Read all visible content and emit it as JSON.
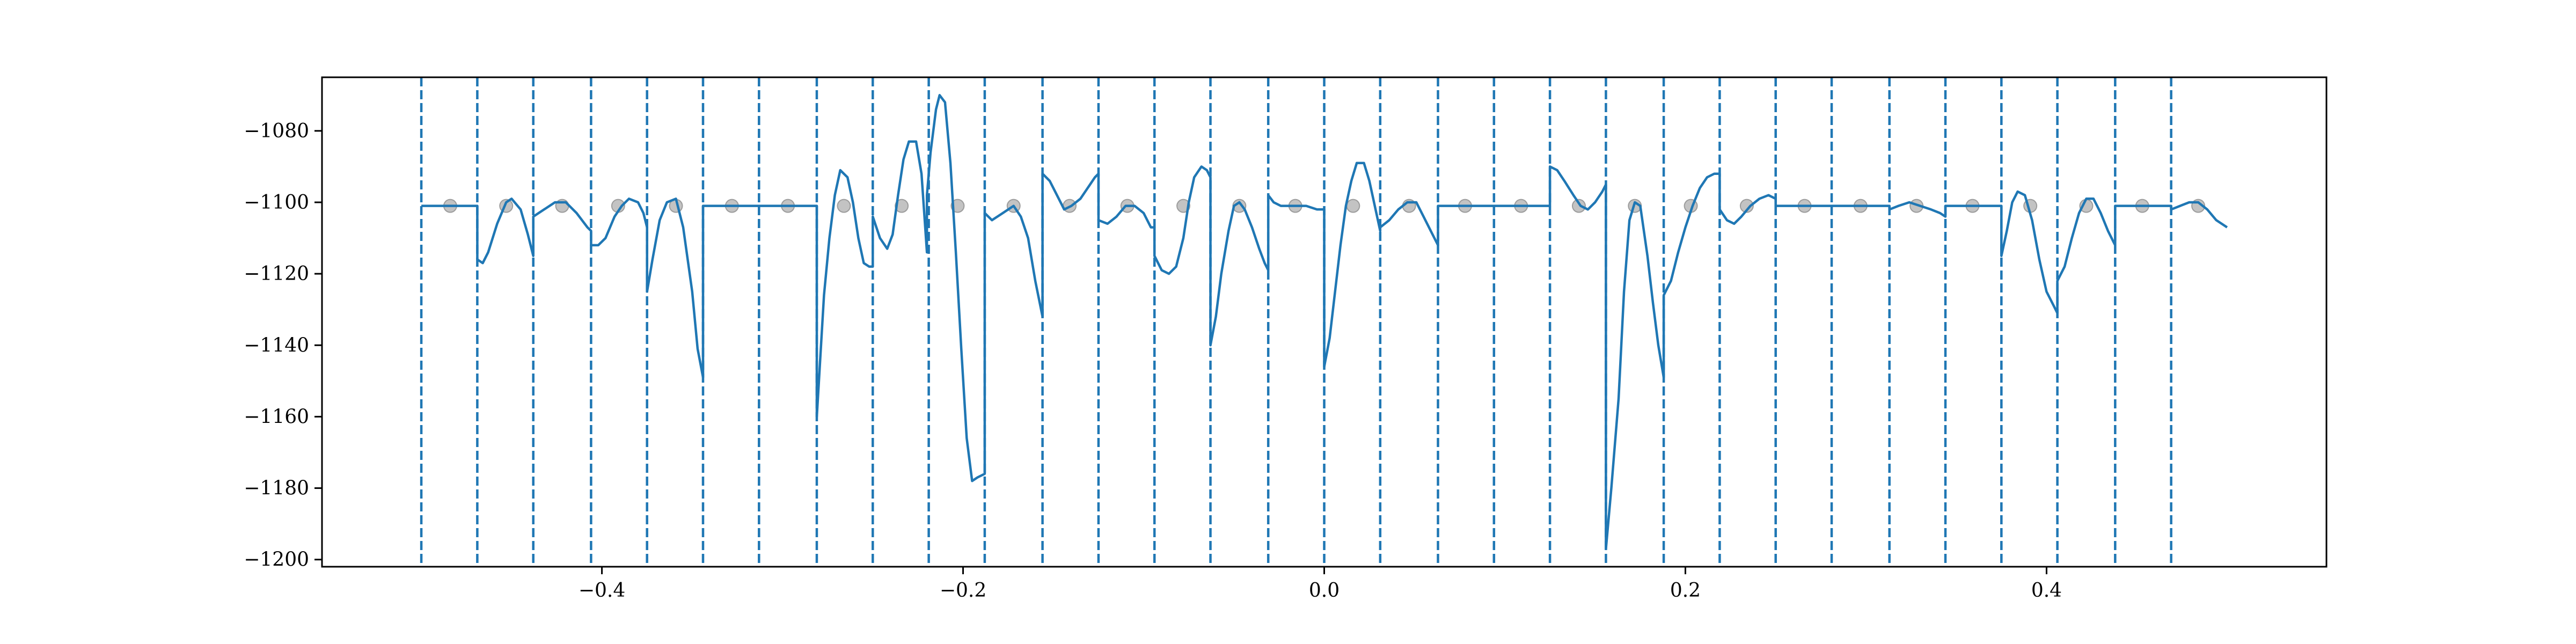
{
  "chart_data": {
    "type": "line",
    "title": "",
    "xlabel": "",
    "ylabel": "",
    "xlim": [
      -0.5,
      0.5
    ],
    "ylim": [
      -1202,
      -1065
    ],
    "x_ticks": [
      -0.4,
      -0.2,
      0.0,
      0.2,
      0.4
    ],
    "x_tick_labels": [
      "−0.4",
      "−0.2",
      "0.0",
      "0.2",
      "0.4"
    ],
    "y_ticks": [
      -1080,
      -1100,
      -1120,
      -1140,
      -1160,
      -1180,
      -1200
    ],
    "y_tick_labels": [
      "−1080",
      "−1100",
      "−1120",
      "−1140",
      "−1160",
      "−1180",
      "−1200"
    ],
    "grid": false,
    "colors": {
      "line": "#1f77b4",
      "markers": "#a9a9a9",
      "dividers": "#1f77b4"
    },
    "divider_x": [
      -0.5,
      -0.469,
      -0.438,
      -0.406,
      -0.375,
      -0.344,
      -0.313,
      -0.281,
      -0.25,
      -0.219,
      -0.188,
      -0.156,
      -0.125,
      -0.094,
      -0.063,
      -0.031,
      0.0,
      0.031,
      0.063,
      0.094,
      0.125,
      0.156,
      0.188,
      0.219,
      0.25,
      0.281,
      0.313,
      0.344,
      0.375,
      0.406,
      0.438,
      0.469
    ],
    "marker_y": -1101,
    "marker_x": [
      -0.484,
      -0.453,
      -0.422,
      -0.391,
      -0.359,
      -0.328,
      -0.297,
      -0.266,
      -0.234,
      -0.203,
      -0.172,
      -0.141,
      -0.109,
      -0.078,
      -0.047,
      -0.016,
      0.016,
      0.047,
      0.078,
      0.109,
      0.141,
      0.172,
      0.203,
      0.234,
      0.266,
      0.297,
      0.328,
      0.359,
      0.391,
      0.422,
      0.453,
      0.484
    ],
    "series": [
      {
        "points": [
          [
            -0.5,
            -1101
          ],
          [
            -0.469,
            -1101
          ],
          [
            -0.469,
            -1116
          ],
          [
            -0.466,
            -1117
          ],
          [
            -0.463,
            -1114
          ],
          [
            -0.458,
            -1106
          ],
          [
            -0.453,
            -1100
          ],
          [
            -0.45,
            -1099
          ],
          [
            -0.445,
            -1102
          ],
          [
            -0.441,
            -1109
          ],
          [
            -0.438,
            -1115
          ],
          [
            -0.438,
            -1104
          ],
          [
            -0.432,
            -1102
          ],
          [
            -0.426,
            -1100
          ],
          [
            -0.42,
            -1100
          ],
          [
            -0.414,
            -1103
          ],
          [
            -0.408,
            -1107
          ],
          [
            -0.406,
            -1108
          ],
          [
            -0.406,
            -1112
          ],
          [
            -0.402,
            -1112
          ],
          [
            -0.398,
            -1110
          ],
          [
            -0.393,
            -1104
          ],
          [
            -0.389,
            -1101
          ],
          [
            -0.385,
            -1099
          ],
          [
            -0.38,
            -1100
          ],
          [
            -0.377,
            -1103
          ],
          [
            -0.375,
            -1107
          ],
          [
            -0.375,
            -1125
          ],
          [
            -0.372,
            -1116
          ],
          [
            -0.368,
            -1105
          ],
          [
            -0.364,
            -1100
          ],
          [
            -0.359,
            -1099
          ],
          [
            -0.355,
            -1107
          ],
          [
            -0.35,
            -1125
          ],
          [
            -0.347,
            -1141
          ],
          [
            -0.344,
            -1149
          ],
          [
            -0.344,
            -1101
          ],
          [
            -0.281,
            -1101
          ],
          [
            -0.281,
            -1160
          ],
          [
            -0.279,
            -1143
          ],
          [
            -0.277,
            -1126
          ],
          [
            -0.274,
            -1110
          ],
          [
            -0.271,
            -1098
          ],
          [
            -0.268,
            -1091
          ],
          [
            -0.264,
            -1093
          ],
          [
            -0.261,
            -1100
          ],
          [
            -0.258,
            -1110
          ],
          [
            -0.255,
            -1117
          ],
          [
            -0.252,
            -1118
          ],
          [
            -0.25,
            -1118
          ],
          [
            -0.25,
            -1104
          ],
          [
            -0.246,
            -1110
          ],
          [
            -0.242,
            -1113
          ],
          [
            -0.239,
            -1109
          ],
          [
            -0.236,
            -1098
          ],
          [
            -0.233,
            -1088
          ],
          [
            -0.23,
            -1083
          ],
          [
            -0.226,
            -1083
          ],
          [
            -0.223,
            -1092
          ],
          [
            -0.22,
            -1114
          ],
          [
            -0.22,
            -1098
          ],
          [
            -0.218,
            -1086
          ],
          [
            -0.215,
            -1074
          ],
          [
            -0.213,
            -1070
          ],
          [
            -0.21,
            -1072
          ],
          [
            -0.207,
            -1089
          ],
          [
            -0.204,
            -1114
          ],
          [
            -0.201,
            -1141
          ],
          [
            -0.198,
            -1166
          ],
          [
            -0.195,
            -1178
          ],
          [
            -0.192,
            -1177
          ],
          [
            -0.188,
            -1176
          ],
          [
            -0.188,
            -1103
          ],
          [
            -0.184,
            -1105
          ],
          [
            -0.178,
            -1103
          ],
          [
            -0.172,
            -1101
          ],
          [
            -0.168,
            -1104
          ],
          [
            -0.164,
            -1110
          ],
          [
            -0.16,
            -1122
          ],
          [
            -0.156,
            -1132
          ],
          [
            -0.156,
            -1092
          ],
          [
            -0.152,
            -1094
          ],
          [
            -0.148,
            -1098
          ],
          [
            -0.144,
            -1102
          ],
          [
            -0.14,
            -1101
          ],
          [
            -0.135,
            -1099
          ],
          [
            -0.131,
            -1096
          ],
          [
            -0.127,
            -1093
          ],
          [
            -0.125,
            -1092
          ],
          [
            -0.125,
            -1105
          ],
          [
            -0.12,
            -1106
          ],
          [
            -0.115,
            -1104
          ],
          [
            -0.11,
            -1101
          ],
          [
            -0.105,
            -1101
          ],
          [
            -0.1,
            -1103
          ],
          [
            -0.096,
            -1107
          ],
          [
            -0.094,
            -1107
          ],
          [
            -0.094,
            -1115
          ],
          [
            -0.09,
            -1119
          ],
          [
            -0.086,
            -1120
          ],
          [
            -0.082,
            -1118
          ],
          [
            -0.078,
            -1110
          ],
          [
            -0.075,
            -1100
          ],
          [
            -0.072,
            -1093
          ],
          [
            -0.068,
            -1090
          ],
          [
            -0.065,
            -1091
          ],
          [
            -0.063,
            -1093
          ],
          [
            -0.063,
            -1140
          ],
          [
            -0.06,
            -1132
          ],
          [
            -0.057,
            -1120
          ],
          [
            -0.053,
            -1108
          ],
          [
            -0.05,
            -1101
          ],
          [
            -0.047,
            -1100
          ],
          [
            -0.044,
            -1102
          ],
          [
            -0.04,
            -1107
          ],
          [
            -0.036,
            -1113
          ],
          [
            -0.033,
            -1117
          ],
          [
            -0.031,
            -1119
          ],
          [
            -0.031,
            -1098
          ],
          [
            -0.028,
            -1100
          ],
          [
            -0.024,
            -1101
          ],
          [
            -0.018,
            -1101
          ],
          [
            -0.01,
            -1101
          ],
          [
            -0.004,
            -1102
          ],
          [
            0.0,
            -1102
          ],
          [
            0.0,
            -1146
          ],
          [
            0.003,
            -1138
          ],
          [
            0.006,
            -1125
          ],
          [
            0.009,
            -1112
          ],
          [
            0.012,
            -1101
          ],
          [
            0.015,
            -1094
          ],
          [
            0.018,
            -1089
          ],
          [
            0.022,
            -1089
          ],
          [
            0.025,
            -1094
          ],
          [
            0.028,
            -1101
          ],
          [
            0.031,
            -1108
          ],
          [
            0.031,
            -1107
          ],
          [
            0.036,
            -1105
          ],
          [
            0.041,
            -1102
          ],
          [
            0.046,
            -1100
          ],
          [
            0.051,
            -1100
          ],
          [
            0.055,
            -1104
          ],
          [
            0.059,
            -1108
          ],
          [
            0.063,
            -1112
          ],
          [
            0.063,
            -1101
          ],
          [
            0.125,
            -1101
          ],
          [
            0.125,
            -1090
          ],
          [
            0.129,
            -1091
          ],
          [
            0.133,
            -1094
          ],
          [
            0.138,
            -1098
          ],
          [
            0.142,
            -1101
          ],
          [
            0.146,
            -1102
          ],
          [
            0.15,
            -1100
          ],
          [
            0.154,
            -1097
          ],
          [
            0.156,
            -1095
          ],
          [
            0.156,
            -1197
          ],
          [
            0.159,
            -1180
          ],
          [
            0.163,
            -1155
          ],
          [
            0.166,
            -1125
          ],
          [
            0.169,
            -1105
          ],
          [
            0.172,
            -1100
          ],
          [
            0.175,
            -1101
          ],
          [
            0.179,
            -1115
          ],
          [
            0.182,
            -1128
          ],
          [
            0.185,
            -1140
          ],
          [
            0.188,
            -1149
          ],
          [
            0.188,
            -1126
          ],
          [
            0.192,
            -1122
          ],
          [
            0.196,
            -1114
          ],
          [
            0.2,
            -1107
          ],
          [
            0.204,
            -1101
          ],
          [
            0.208,
            -1096
          ],
          [
            0.212,
            -1093
          ],
          [
            0.216,
            -1092
          ],
          [
            0.219,
            -1092
          ],
          [
            0.219,
            -1102
          ],
          [
            0.223,
            -1105
          ],
          [
            0.227,
            -1106
          ],
          [
            0.231,
            -1104
          ],
          [
            0.236,
            -1101
          ],
          [
            0.241,
            -1099
          ],
          [
            0.246,
            -1098
          ],
          [
            0.25,
            -1099
          ],
          [
            0.25,
            -1101
          ],
          [
            0.313,
            -1101
          ],
          [
            0.313,
            -1102
          ],
          [
            0.318,
            -1101
          ],
          [
            0.324,
            -1100
          ],
          [
            0.33,
            -1101
          ],
          [
            0.336,
            -1102
          ],
          [
            0.341,
            -1103
          ],
          [
            0.344,
            -1104
          ],
          [
            0.344,
            -1101
          ],
          [
            0.375,
            -1101
          ],
          [
            0.375,
            -1115
          ],
          [
            0.378,
            -1108
          ],
          [
            0.381,
            -1100
          ],
          [
            0.384,
            -1097
          ],
          [
            0.388,
            -1098
          ],
          [
            0.392,
            -1105
          ],
          [
            0.396,
            -1116
          ],
          [
            0.4,
            -1125
          ],
          [
            0.404,
            -1129
          ],
          [
            0.406,
            -1131
          ],
          [
            0.406,
            -1122
          ],
          [
            0.41,
            -1118
          ],
          [
            0.414,
            -1110
          ],
          [
            0.418,
            -1103
          ],
          [
            0.422,
            -1099
          ],
          [
            0.426,
            -1099
          ],
          [
            0.43,
            -1103
          ],
          [
            0.434,
            -1108
          ],
          [
            0.438,
            -1112
          ],
          [
            0.438,
            -1101
          ],
          [
            0.469,
            -1101
          ],
          [
            0.469,
            -1102
          ],
          [
            0.474,
            -1101
          ],
          [
            0.479,
            -1100
          ],
          [
            0.484,
            -1100
          ],
          [
            0.489,
            -1102
          ],
          [
            0.494,
            -1105
          ],
          [
            0.5,
            -1107
          ]
        ]
      }
    ]
  }
}
